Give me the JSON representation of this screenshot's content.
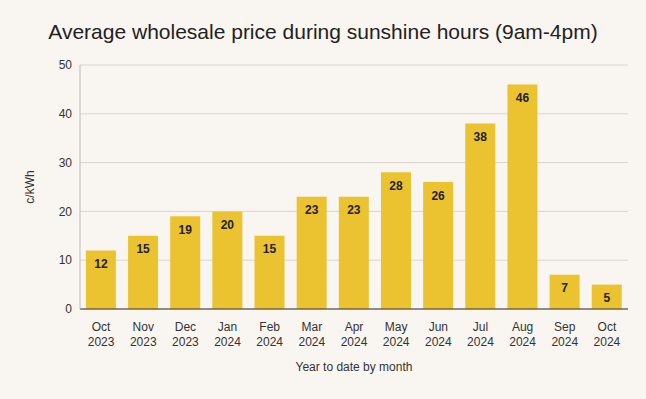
{
  "chart_data": {
    "type": "bar",
    "title": "Average wholesale price during sunshine hours (9am-4pm)",
    "x_label": "Year to date by month",
    "y_label": "c/kWh",
    "categories": [
      "Oct 2023",
      "Nov 2023",
      "Dec 2023",
      "Jan 2024",
      "Feb 2024",
      "Mar 2024",
      "Apr 2024",
      "May 2024",
      "Jun 2024",
      "Jul 2024",
      "Aug 2024",
      "Sep 2024",
      "Oct 2024"
    ],
    "values": [
      12,
      15,
      19,
      20,
      15,
      23,
      23,
      28,
      26,
      38,
      46,
      7,
      5
    ],
    "color": "#ebc331",
    "ylim": [
      0,
      50
    ],
    "yticks": [
      0,
      10,
      20,
      30,
      40,
      50
    ],
    "grid": true,
    "data_labels": true
  }
}
